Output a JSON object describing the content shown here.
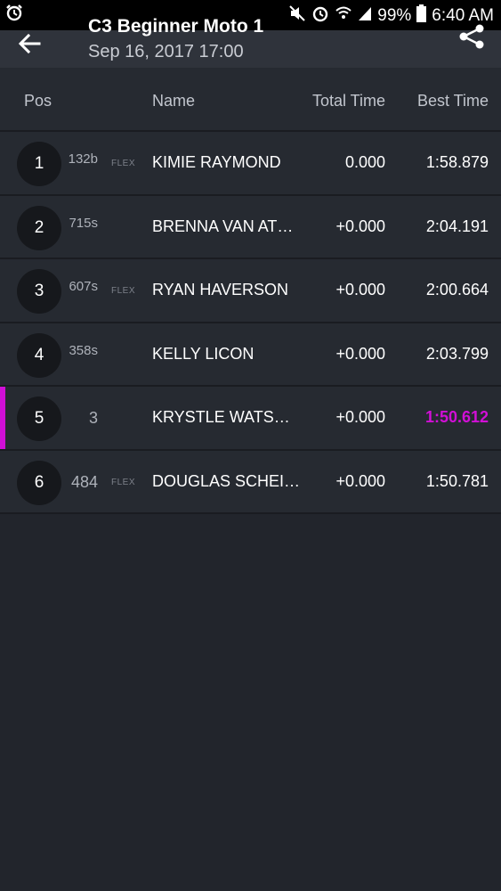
{
  "status_bar": {
    "battery": "99%",
    "time": "6:40 AM"
  },
  "toolbar": {
    "title": "C3 Beginner Moto 1",
    "subtitle": "Sep 16, 2017 17:00"
  },
  "columns": {
    "pos": "Pos",
    "name": "Name",
    "total_time": "Total Time",
    "best_time": "Best Time"
  },
  "rows": [
    {
      "pos": "1",
      "bib": "132b",
      "flex": "FLEX",
      "name": "KIMIE RAYMOND",
      "total": "0.000",
      "best": "1:58.879"
    },
    {
      "pos": "2",
      "bib": "715s",
      "flex": "",
      "name": "BRENNA VAN AT…",
      "total": "+0.000",
      "best": "2:04.191"
    },
    {
      "pos": "3",
      "bib": "607s",
      "flex": "FLEX",
      "name": "RYAN HAVERSON",
      "total": "+0.000",
      "best": "2:00.664"
    },
    {
      "pos": "4",
      "bib": "358s",
      "flex": "",
      "name": "KELLY LICON",
      "total": "+0.000",
      "best": "2:03.799"
    },
    {
      "pos": "5",
      "bib": "3",
      "flex": "",
      "name": "KRYSTLE WATS…",
      "total": "+0.000",
      "best": "1:50.612"
    },
    {
      "pos": "6",
      "bib": "484",
      "flex": "FLEX",
      "name": "DOUGLAS SCHEI…",
      "total": "+0.000",
      "best": "1:50.781"
    }
  ],
  "colors": {
    "highlight": "#d10fd6",
    "background": "#22252c",
    "row": "#262a31"
  }
}
